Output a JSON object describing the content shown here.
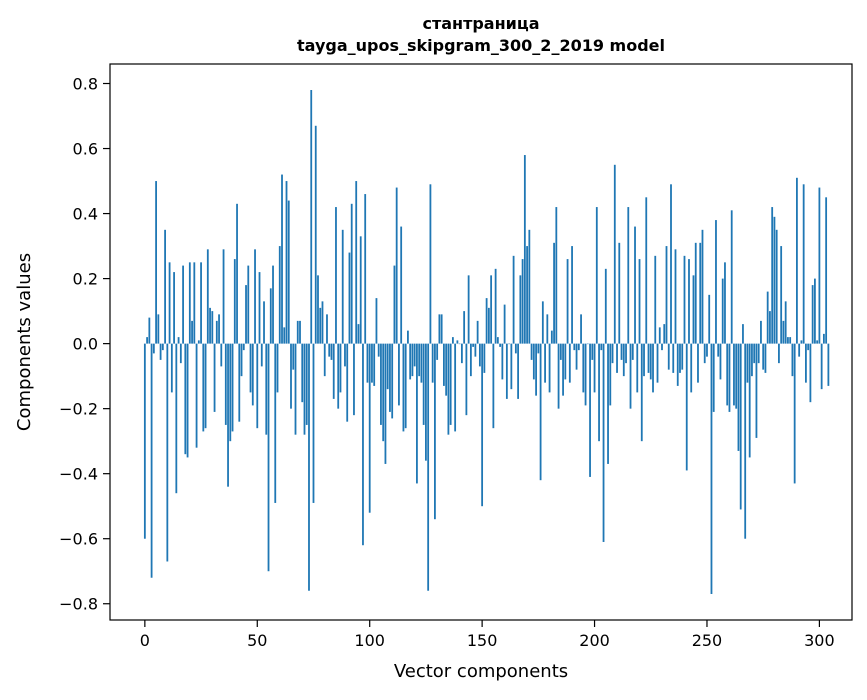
{
  "chart_data": {
    "type": "bar",
    "title": "стантраница",
    "subtitle": "tayga_upos_skipgram_300_2_2019 model",
    "xlabel": "Vector components",
    "ylabel": "Components values",
    "xlim": [
      -15.5,
      314.5
    ],
    "ylim": [
      -0.85,
      0.86
    ],
    "xticks": [
      0,
      50,
      100,
      150,
      200,
      250,
      300
    ],
    "xtick_labels": [
      "0",
      "50",
      "100",
      "150",
      "200",
      "250",
      "300"
    ],
    "yticks": [
      -0.8,
      -0.6,
      -0.4,
      -0.2,
      0.0,
      0.2,
      0.4,
      0.6,
      0.8
    ],
    "ytick_labels": [
      "−0.8",
      "−0.6",
      "−0.4",
      "−0.2",
      "0.0",
      "0.2",
      "0.4",
      "0.6",
      "0.8"
    ],
    "bar_color": "#1f77b4",
    "values": [
      -0.6,
      0.02,
      0.08,
      -0.72,
      -0.03,
      0.5,
      0.09,
      -0.05,
      -0.02,
      0.35,
      -0.67,
      0.25,
      -0.15,
      0.22,
      -0.46,
      0.02,
      -0.06,
      0.24,
      -0.34,
      -0.35,
      0.25,
      0.07,
      0.25,
      -0.32,
      0.01,
      0.25,
      -0.27,
      -0.26,
      0.29,
      0.11,
      0.1,
      -0.21,
      0.07,
      0.09,
      -0.07,
      0.29,
      -0.25,
      -0.44,
      -0.3,
      -0.27,
      0.26,
      0.43,
      -0.24,
      -0.1,
      -0.02,
      0.18,
      0.24,
      -0.15,
      -0.19,
      0.29,
      -0.26,
      0.22,
      -0.07,
      0.13,
      -0.28,
      -0.7,
      0.17,
      0.24,
      -0.49,
      -0.15,
      0.3,
      0.52,
      0.05,
      0.5,
      0.44,
      -0.2,
      -0.08,
      -0.28,
      0.07,
      0.07,
      -0.18,
      -0.28,
      -0.25,
      -0.76,
      0.78,
      -0.49,
      0.67,
      0.21,
      0.11,
      0.13,
      -0.1,
      0.09,
      -0.04,
      -0.05,
      -0.17,
      0.42,
      -0.2,
      -0.15,
      0.35,
      -0.07,
      -0.24,
      0.28,
      0.43,
      -0.22,
      0.5,
      0.06,
      0.33,
      -0.62,
      0.46,
      -0.12,
      -0.52,
      -0.12,
      -0.13,
      0.14,
      -0.04,
      -0.25,
      -0.3,
      -0.37,
      -0.14,
      -0.21,
      -0.23,
      0.24,
      0.48,
      -0.19,
      0.36,
      -0.27,
      -0.26,
      0.04,
      -0.11,
      -0.1,
      -0.07,
      -0.43,
      -0.1,
      -0.12,
      -0.25,
      -0.36,
      -0.76,
      0.49,
      -0.12,
      -0.54,
      -0.05,
      0.09,
      0.09,
      -0.13,
      -0.16,
      -0.28,
      -0.25,
      0.02,
      -0.27,
      0.01,
      0.0,
      -0.06,
      0.1,
      -0.22,
      0.21,
      -0.1,
      -0.01,
      -0.04,
      0.07,
      -0.07,
      -0.5,
      -0.09,
      0.14,
      0.11,
      0.21,
      -0.26,
      0.23,
      0.02,
      -0.01,
      -0.11,
      0.12,
      -0.17,
      0.0,
      -0.14,
      0.27,
      -0.03,
      -0.17,
      0.21,
      0.26,
      0.58,
      0.3,
      0.35,
      -0.05,
      -0.11,
      -0.16,
      -0.03,
      -0.42,
      0.13,
      -0.12,
      0.09,
      -0.15,
      0.04,
      0.31,
      0.42,
      -0.2,
      -0.05,
      -0.16,
      -0.11,
      0.26,
      -0.12,
      0.3,
      -0.02,
      -0.08,
      -0.02,
      0.09,
      -0.15,
      -0.19,
      0.0,
      -0.41,
      -0.05,
      -0.15,
      0.42,
      -0.3,
      -0.02,
      -0.61,
      0.23,
      -0.37,
      -0.19,
      -0.06,
      0.55,
      -0.09,
      0.31,
      -0.05,
      -0.1,
      -0.06,
      0.42,
      -0.2,
      -0.05,
      0.36,
      -0.15,
      0.26,
      -0.3,
      -0.1,
      0.45,
      -0.09,
      -0.11,
      -0.15,
      0.27,
      -0.12,
      0.05,
      -0.02,
      0.06,
      0.3,
      -0.08,
      0.49,
      -0.09,
      0.29,
      -0.13,
      -0.09,
      -0.08,
      0.27,
      -0.39,
      0.26,
      -0.15,
      0.21,
      0.31,
      -0.12,
      0.31,
      0.35,
      -0.06,
      -0.04,
      0.15,
      -0.77,
      -0.21,
      0.38,
      -0.04,
      -0.11,
      0.2,
      0.25,
      -0.19,
      -0.21,
      0.41,
      -0.19,
      -0.2,
      -0.33,
      -0.51,
      0.06,
      -0.6,
      -0.12,
      -0.35,
      -0.1,
      -0.06,
      -0.29,
      -0.06,
      0.07,
      -0.08,
      -0.09,
      0.16,
      0.1,
      0.42,
      0.39,
      0.35,
      -0.06,
      0.3,
      0.07,
      0.13,
      0.02,
      0.02,
      -0.1,
      -0.43,
      0.51,
      -0.04,
      0.01,
      0.49,
      -0.12,
      -0.02,
      -0.18,
      0.18,
      0.2,
      0.01,
      0.48,
      -0.14,
      0.03,
      0.45,
      -0.13
    ]
  }
}
